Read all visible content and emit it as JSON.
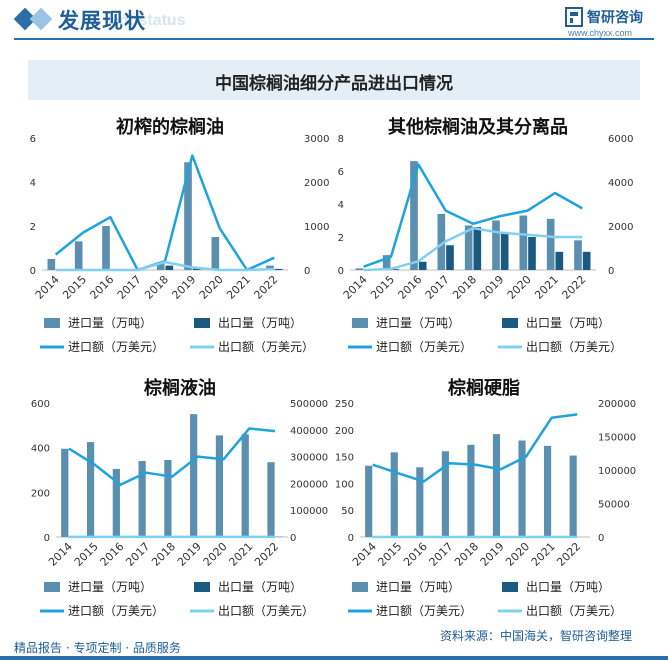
{
  "header": {
    "title": "发展现状",
    "subtitle": "ent status",
    "logo_text": "智研咨询",
    "logo_url": "www.chyxx.com"
  },
  "banner": {
    "title": "中国棕榈油细分产品进出口情况"
  },
  "footer": {
    "left": "精品报告 · 专项定制 · 品质服务",
    "source": "资料来源：中国海关，智研咨询整理"
  },
  "legend": {
    "import_qty": "进口量（万吨）",
    "export_qty": "出口量（万吨）",
    "import_val": "进口额（万美元）",
    "export_val": "出口额（万美元）"
  },
  "colors": {
    "import_bar": "#5b8faf",
    "export_bar": "#1a5a80",
    "import_line": "#1ea3dc",
    "export_line": "#7fd0f2",
    "accent": "#1f5e96"
  },
  "chart_data": [
    {
      "type": "bar+line",
      "title": "初榨的棕榈油",
      "categories": [
        "2014",
        "2015",
        "2016",
        "2017",
        "2018",
        "2019",
        "2020",
        "2021",
        "2022"
      ],
      "left_axis": {
        "ylim": [
          0,
          6
        ],
        "ticks": [
          "0",
          "2",
          "4",
          "6"
        ]
      },
      "right_axis": {
        "ylim": [
          0,
          3000
        ],
        "ticks": [
          "0",
          "1000",
          "2000",
          "3000"
        ]
      },
      "series": [
        {
          "name": "进口量（万吨）",
          "kind": "bar",
          "axis": "left",
          "values": [
            0.5,
            1.3,
            2.0,
            0.0,
            0.3,
            4.9,
            1.5,
            0.0,
            0.2
          ]
        },
        {
          "name": "出口量（万吨）",
          "kind": "bar",
          "axis": "left",
          "values": [
            0,
            0,
            0,
            0,
            0.2,
            0.1,
            0,
            0,
            0.05
          ]
        },
        {
          "name": "进口额（万美元）",
          "kind": "line",
          "axis": "right",
          "values": [
            350,
            850,
            1200,
            0,
            200,
            2600,
            950,
            0,
            280
          ]
        },
        {
          "name": "出口额（万美元）",
          "kind": "line",
          "axis": "right",
          "values": [
            0,
            0,
            0,
            0,
            180,
            60,
            0,
            0,
            20
          ]
        }
      ]
    },
    {
      "type": "bar+line",
      "title": "其他棕榈油及其分离品",
      "categories": [
        "2014",
        "2015",
        "2016",
        "2017",
        "2018",
        "2019",
        "2020",
        "2021",
        "2022"
      ],
      "left_axis": {
        "ylim": [
          0,
          8
        ],
        "ticks": [
          "0",
          "2",
          "4",
          "6",
          "8"
        ]
      },
      "right_axis": {
        "ylim": [
          0,
          6000
        ],
        "ticks": [
          "0",
          "2000",
          "4000",
          "6000"
        ]
      },
      "series": [
        {
          "name": "进口量（万吨）",
          "kind": "bar",
          "axis": "left",
          "values": [
            0.1,
            0.9,
            6.6,
            3.4,
            2.7,
            3.0,
            3.3,
            3.1,
            1.8
          ]
        },
        {
          "name": "出口量（万吨）",
          "kind": "bar",
          "axis": "left",
          "values": [
            0.0,
            0.05,
            0.5,
            1.5,
            2.6,
            2.3,
            2.0,
            1.1,
            1.1
          ]
        },
        {
          "name": "进口额（万美元）",
          "kind": "line",
          "axis": "right",
          "values": [
            150,
            600,
            4800,
            2700,
            2100,
            2450,
            2700,
            3500,
            2800
          ]
        },
        {
          "name": "出口额（万美元）",
          "kind": "line",
          "axis": "right",
          "values": [
            0,
            50,
            400,
            1300,
            1900,
            1700,
            1600,
            1500,
            1500
          ]
        }
      ]
    },
    {
      "type": "bar+line",
      "title": "棕榈液油",
      "categories": [
        "2014",
        "2015",
        "2016",
        "2017",
        "2018",
        "2019",
        "2020",
        "2021",
        "2022"
      ],
      "left_axis": {
        "ylim": [
          0,
          600
        ],
        "ticks": [
          "0",
          "200",
          "400",
          "600"
        ]
      },
      "right_axis": {
        "ylim": [
          0,
          500000
        ],
        "ticks": [
          "0",
          "100000",
          "200000",
          "300000",
          "400000",
          "500000"
        ]
      },
      "series": [
        {
          "name": "进口量（万吨）",
          "kind": "bar",
          "axis": "left",
          "values": [
            395,
            425,
            305,
            340,
            345,
            550,
            455,
            460,
            335
          ]
        },
        {
          "name": "出口量（万吨）",
          "kind": "bar",
          "axis": "left",
          "values": [
            1,
            1,
            1,
            1,
            1,
            1,
            1,
            1,
            1
          ]
        },
        {
          "name": "进口额（万美元）",
          "kind": "line",
          "axis": "right",
          "values": [
            330000,
            270000,
            195000,
            240000,
            225000,
            300000,
            290000,
            405000,
            395000
          ]
        },
        {
          "name": "出口额（万美元）",
          "kind": "line",
          "axis": "right",
          "values": [
            500,
            500,
            500,
            500,
            500,
            500,
            500,
            500,
            500
          ]
        }
      ]
    },
    {
      "type": "bar+line",
      "title": "棕榈硬脂",
      "categories": [
        "2014",
        "2015",
        "2016",
        "2017",
        "2018",
        "2019",
        "2020",
        "2021",
        "2022"
      ],
      "left_axis": {
        "ylim": [
          0,
          250
        ],
        "ticks": [
          "0",
          "50",
          "100",
          "150",
          "200",
          "250"
        ]
      },
      "right_axis": {
        "ylim": [
          0,
          200000
        ],
        "ticks": [
          "0",
          "50000",
          "100000",
          "150000",
          "200000"
        ]
      },
      "series": [
        {
          "name": "进口量（万吨）",
          "kind": "bar",
          "axis": "left",
          "values": [
            133,
            158,
            130,
            160,
            172,
            192,
            180,
            170,
            152
          ]
        },
        {
          "name": "出口量（万吨）",
          "kind": "bar",
          "axis": "left",
          "values": [
            0,
            0,
            0,
            0,
            0,
            0,
            0,
            0,
            0
          ]
        },
        {
          "name": "进口额（万美元）",
          "kind": "line",
          "axis": "right",
          "values": [
            108000,
            95000,
            83000,
            110000,
            108000,
            101000,
            120000,
            178000,
            183000
          ]
        },
        {
          "name": "出口额（万美元）",
          "kind": "line",
          "axis": "right",
          "values": [
            0,
            0,
            0,
            0,
            0,
            0,
            0,
            0,
            0
          ]
        }
      ]
    }
  ]
}
